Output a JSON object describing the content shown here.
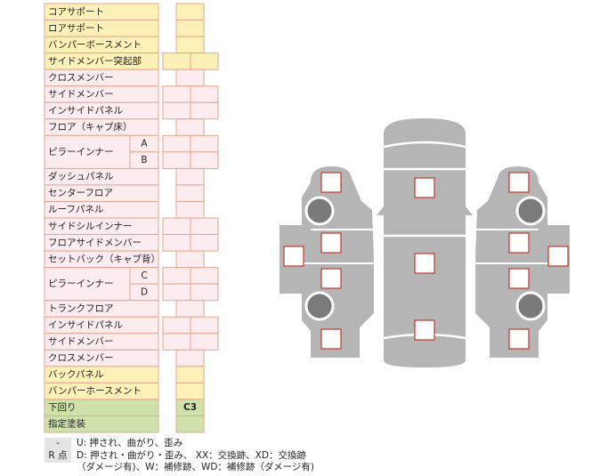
{
  "table": {
    "rows": [
      {
        "label": "コアサポート",
        "color": "#fdf1b8"
      },
      {
        "label": "ロアサポート",
        "color": "#fdf1b8"
      },
      {
        "label": "バンパーボースメント",
        "color": "#fdf1b8"
      },
      {
        "label": "サイドメンバー突起部",
        "color": "#fdf1b8",
        "split": true
      },
      {
        "label": "クロスメンバー",
        "color": "#fdecef"
      },
      {
        "label": "サイドメンバー",
        "color": "#fdecef",
        "split": true
      },
      {
        "label": "インサイドパネル",
        "color": "#fdecef",
        "split": true
      },
      {
        "label": "フロア（キャブ床）",
        "color": "#fdecef"
      },
      {
        "label": "ピラーインナー",
        "color": "#fdecef",
        "split": true,
        "parts": [
          "A",
          "B"
        ]
      },
      {
        "label": "ダッシュパネル",
        "color": "#fdecef"
      },
      {
        "label": "センターフロア",
        "color": "#fdecef"
      },
      {
        "label": "ルーフパネル",
        "color": "#fdecef"
      },
      {
        "label": "サイドシルインナー",
        "color": "#fdecef",
        "split": true
      },
      {
        "label": "フロアサイドメンバー",
        "color": "#fdecef",
        "split": true
      },
      {
        "label": "セットバック（キャブ背）",
        "color": "#fdecef"
      },
      {
        "label": "ピラーインナー",
        "color": "#fdecef",
        "split": true,
        "parts": [
          "C",
          "D"
        ]
      },
      {
        "label": "トランクフロア",
        "color": "#fdecef"
      },
      {
        "label": "インサイドパネル",
        "color": "#fdecef",
        "split": true
      },
      {
        "label": "サイドメンバー",
        "color": "#fdecef",
        "split": true
      },
      {
        "label": "クロスメンバー",
        "color": "#fdecef"
      },
      {
        "label": "バックパネル",
        "color": "#fdf1b8"
      },
      {
        "label": "バンパーホースメント",
        "color": "#fdf1b8"
      },
      {
        "label": "下回り",
        "color": "#cfe2ab",
        "value": "C3"
      },
      {
        "label": "指定塗装",
        "color": "#cfe2ab"
      }
    ]
  },
  "legend": [
    {
      "key": "-",
      "lines": [
        "U: 押され、曲がり、歪み"
      ]
    },
    {
      "key": "R 点",
      "lines": [
        "D: 押され・曲がり・歪み、 XX：交換跡、XD：交換跡",
        "（ダメージ有)、W：補修跡、WD：補修跡（ダメージ有)"
      ]
    }
  ]
}
